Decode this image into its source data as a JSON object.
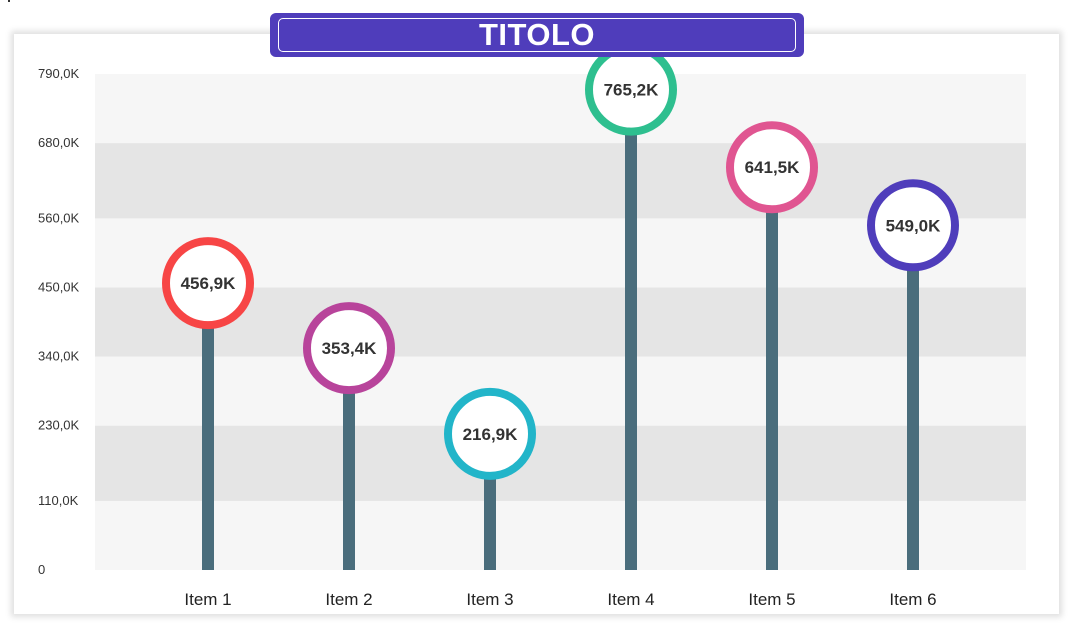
{
  "title": "TITOLO",
  "chart_data": {
    "type": "lollipop",
    "title": "TITOLO",
    "categories": [
      "Item 1",
      "Item 2",
      "Item 3",
      "Item 4",
      "Item 5",
      "Item 6"
    ],
    "values": [
      456900,
      353400,
      216900,
      765200,
      641500,
      549000
    ],
    "data_labels": [
      "456,9K",
      "353,4K",
      "216,9K",
      "765,2K",
      "641,5K",
      "549,0K"
    ],
    "marker_colors": [
      "#f74545",
      "#b8449b",
      "#22b5c9",
      "#2ebf8f",
      "#e05591",
      "#4f3dbb"
    ],
    "stem_color": "#4a6d7c",
    "y_ticks": [
      0,
      110000,
      230000,
      340000,
      450000,
      560000,
      680000,
      790000
    ],
    "y_tick_labels": [
      "0",
      "110,0K",
      "230,0K",
      "340,0K",
      "450,0K",
      "560,0K",
      "680,0K",
      "790,0K"
    ],
    "ylim": [
      0,
      790000
    ],
    "band_colors": [
      "#f6f6f6",
      "#e5e5e5"
    ],
    "legend": "none",
    "xlabel": "",
    "ylabel": ""
  }
}
